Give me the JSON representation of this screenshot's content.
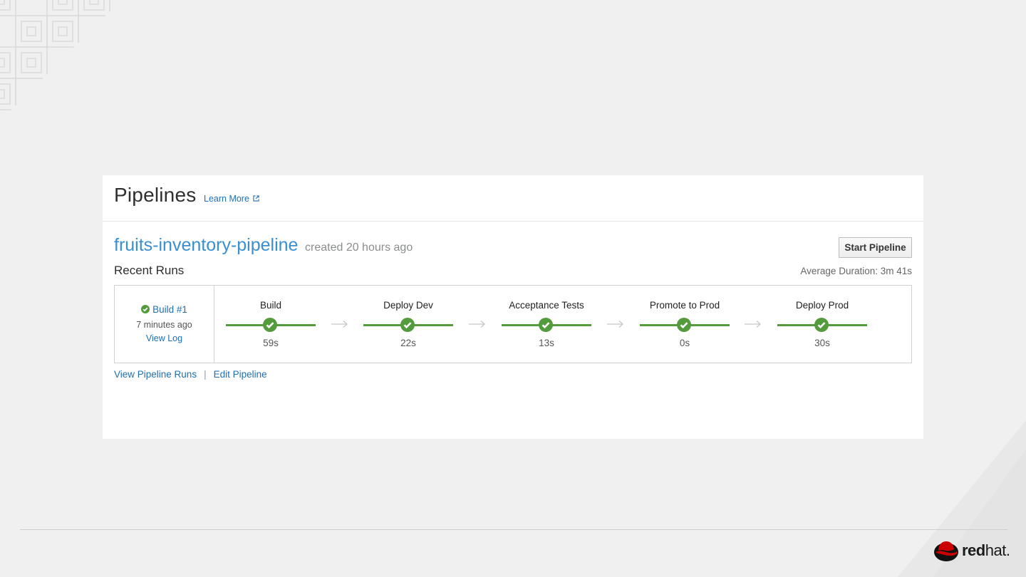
{
  "header": {
    "title": "Pipelines",
    "learn_more": "Learn More"
  },
  "pipeline": {
    "name": "fruits-inventory-pipeline",
    "created": "created 20 hours ago",
    "start_button": "Start Pipeline",
    "recent_runs_label": "Recent Runs",
    "average_duration": "Average Duration: 3m 41s"
  },
  "run": {
    "build_label": "Build #1",
    "time_ago": "7 minutes ago",
    "view_log": "View Log",
    "status_color": "#539b3d"
  },
  "stages": [
    {
      "name": "Build",
      "duration": "59s"
    },
    {
      "name": "Deploy Dev",
      "duration": "22s"
    },
    {
      "name": "Acceptance Tests",
      "duration": "13s"
    },
    {
      "name": "Promote to Prod",
      "duration": "0s"
    },
    {
      "name": "Deploy Prod",
      "duration": "30s"
    }
  ],
  "links": {
    "view_runs": "View Pipeline Runs",
    "separator": "|",
    "edit": "Edit Pipeline"
  },
  "brand": {
    "logo_text_bold": "red",
    "logo_text_light": "hat.",
    "logo_icon": "redhat-shadowman-icon",
    "accent": "#cc0000"
  }
}
